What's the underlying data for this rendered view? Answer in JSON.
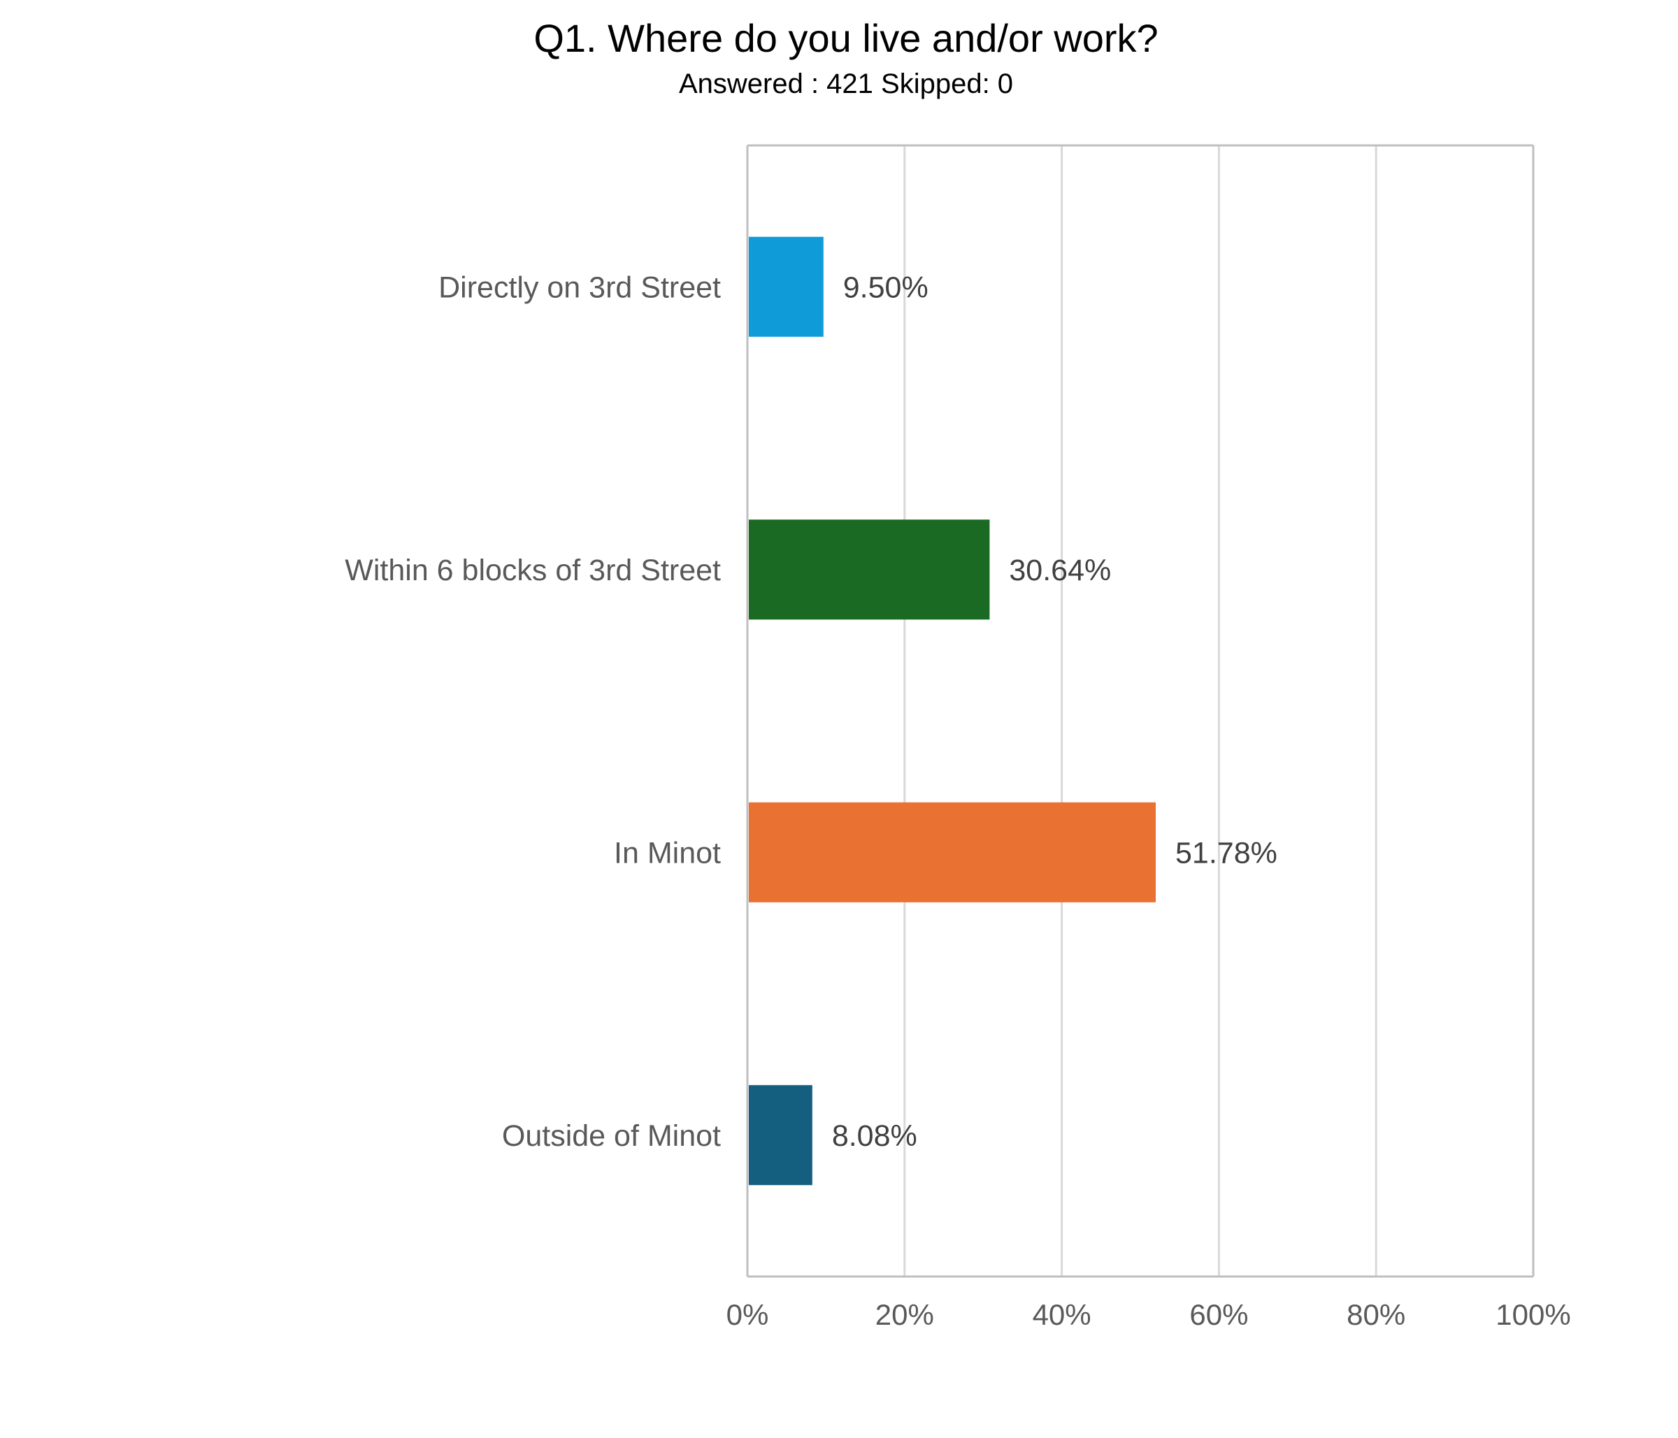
{
  "chart_data": {
    "type": "bar",
    "orientation": "horizontal",
    "title": "Q1. Where do you live and/or work?",
    "subtitle": "Answered : 421  Skipped: 0",
    "categories": [
      "Directly on 3rd Street",
      "Within 6 blocks of 3rd Street",
      "In Minot",
      "Outside of Minot"
    ],
    "values": [
      9.5,
      30.64,
      51.78,
      8.08
    ],
    "data_labels": [
      "9.50%",
      "30.64%",
      "51.78%",
      "8.08%"
    ],
    "colors": [
      "#0f9bd7",
      "#1a6a23",
      "#e97132",
      "#145e7f"
    ],
    "xlim": [
      0,
      100
    ],
    "xticks": [
      "0%",
      "20%",
      "40%",
      "60%",
      "80%",
      "100%"
    ],
    "grid": true,
    "xlabel": "",
    "ylabel": ""
  }
}
